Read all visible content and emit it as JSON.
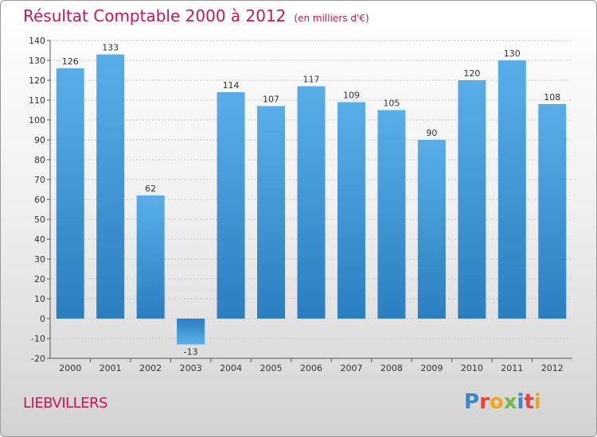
{
  "header": {
    "title": "Résultat Comptable 2000 à 2012",
    "unit": "(en milliers d'€)"
  },
  "footer": {
    "commune": "LIEBVILLERS",
    "logo_text": "Proxiti"
  },
  "logo_letters": [
    {
      "ch": "P",
      "color": "#3a86c8"
    },
    {
      "ch": "r",
      "color": "#e8443a"
    },
    {
      "ch": "o",
      "color": "#f2a51a"
    },
    {
      "ch": "x",
      "color": "#7ab648"
    },
    {
      "ch": "i",
      "color": "#3a86c8"
    },
    {
      "ch": "t",
      "color": "#e8443a"
    },
    {
      "ch": "i",
      "color": "#f2a51a"
    }
  ],
  "colors": {
    "bar_top": "#5aaee8",
    "bar_bottom": "#2b7ec0",
    "grid": "#c8c8c8",
    "title": "#c2185b"
  },
  "chart_data": {
    "type": "bar",
    "title": "Résultat Comptable 2000 à 2012",
    "subtitle": "(en milliers d'€)",
    "categories": [
      "2000",
      "2001",
      "2002",
      "2003",
      "2004",
      "2005",
      "2006",
      "2007",
      "2008",
      "2009",
      "2010",
      "2011",
      "2012"
    ],
    "values": [
      126,
      133,
      62,
      -13,
      114,
      107,
      117,
      109,
      105,
      90,
      120,
      130,
      108
    ],
    "value_labels": [
      "126",
      "133",
      "62",
      "-13",
      "114",
      "107",
      "117",
      "109",
      "105",
      "90",
      "120",
      "130",
      "108"
    ],
    "ylim": [
      -20,
      140
    ],
    "yticks": [
      -20,
      -10,
      0,
      10,
      20,
      30,
      40,
      50,
      60,
      70,
      80,
      90,
      100,
      110,
      120,
      130,
      140
    ],
    "grid": true,
    "legend": "none"
  }
}
